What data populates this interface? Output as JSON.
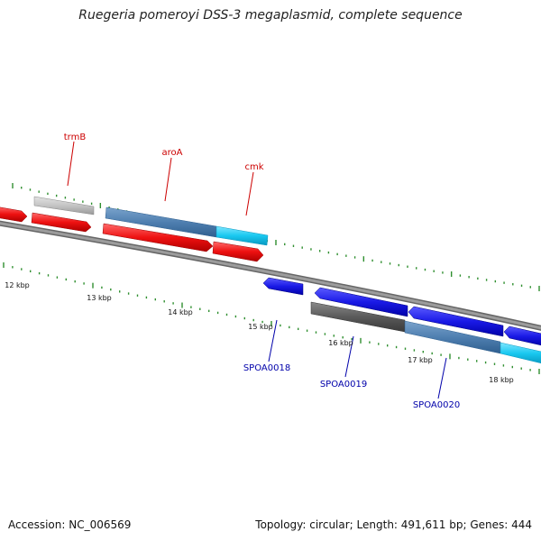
{
  "title": "Ruegeria pomeroyi DSS-3 megaplasmid, complete sequence",
  "footer": {
    "accession": "Accession: NC_006569",
    "summary": "Topology: circular; Length: 491,611 bp; Genes: 444"
  },
  "colors": {
    "backbone": "#808080",
    "tick": "#2f8f2f",
    "red": "#ee1111",
    "blue": "#1a1ae6",
    "steel": "#4f7fb0",
    "cyan": "#19c8f0",
    "gray_light": "#c4c4c4",
    "gray_dark": "#5a5a5a",
    "label_red": "#cc0000",
    "label_blue": "#0000aa"
  },
  "kbp_labels": [
    "12 kbp",
    "13 kbp",
    "14 kbp",
    "15 kbp",
    "16 kbp",
    "17 kbp",
    "18 kbp"
  ],
  "gene_labels_top": [
    "trmB",
    "aroA",
    "cmk"
  ],
  "gene_labels_bottom": [
    "SPOA0018",
    "SPOA0019",
    "SPOA0020"
  ]
}
